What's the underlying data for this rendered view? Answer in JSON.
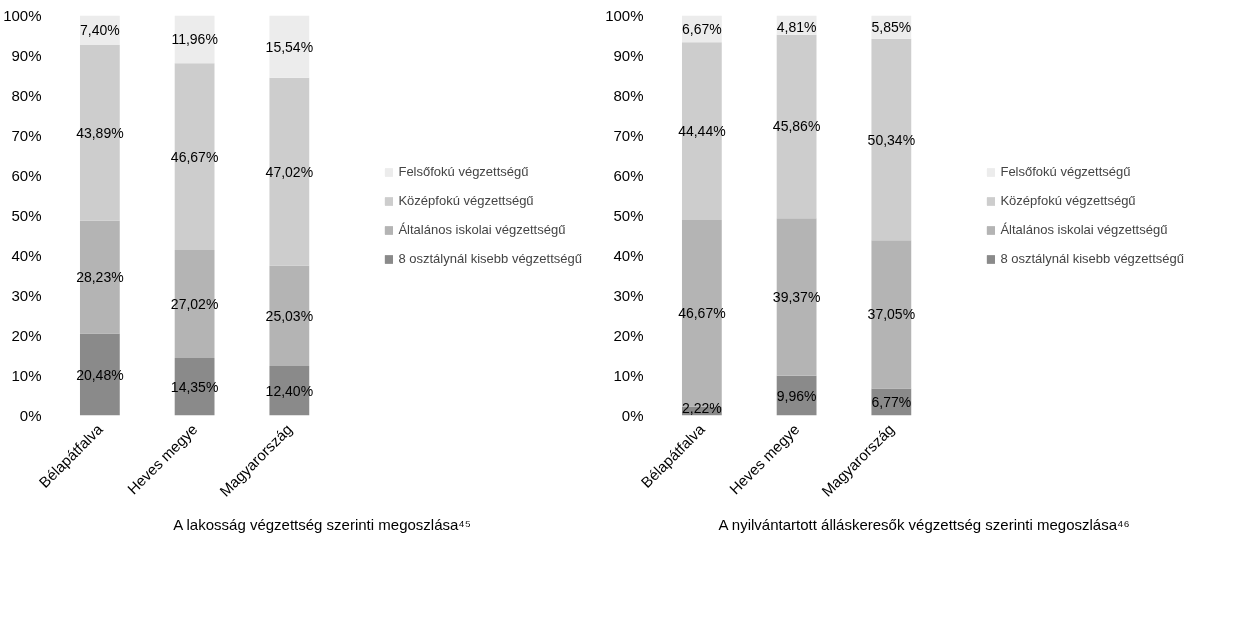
{
  "chart_data": [
    {
      "type": "bar",
      "stacked": true,
      "title": "A lakosság végzettség szerinti megoszlása⁴⁵",
      "categories": [
        "Bélapátfalva",
        "Heves megye",
        "Magyarország"
      ],
      "ylim": [
        0,
        100
      ],
      "yticks": [
        {
          "value": 0,
          "label": "0%"
        },
        {
          "value": 10,
          "label": "10%"
        },
        {
          "value": 20,
          "label": "20%"
        },
        {
          "value": 30,
          "label": "30%"
        },
        {
          "value": 40,
          "label": "40%"
        },
        {
          "value": 50,
          "label": "50%"
        },
        {
          "value": 60,
          "label": "60%"
        },
        {
          "value": 70,
          "label": "70%"
        },
        {
          "value": 80,
          "label": "80%"
        },
        {
          "value": 90,
          "label": "90%"
        },
        {
          "value": 100,
          "label": "100%"
        }
      ],
      "grid": false,
      "legend": "right",
      "series": [
        {
          "name": "8 osztálynál kisebb végzettségű",
          "color": "#8a8a8a",
          "values": [
            20.48,
            14.35,
            12.4
          ],
          "value_labels": [
            "20,48%",
            "14,35%",
            "12,40%"
          ]
        },
        {
          "name": "Általános iskolai végzettségű",
          "color": "#b4b4b4",
          "values": [
            28.23,
            27.02,
            25.03
          ],
          "value_labels": [
            "28,23%",
            "27,02%",
            "25,03%"
          ]
        },
        {
          "name": "Középfokú végzettségű",
          "color": "#cdcdcd",
          "values": [
            43.89,
            46.67,
            47.02
          ],
          "value_labels": [
            "43,89%",
            "46,67%",
            "47,02%"
          ]
        },
        {
          "name": "Felsőfokú végzettségű",
          "color": "#ececec",
          "values": [
            7.4,
            11.96,
            15.54
          ],
          "value_labels": [
            "7,40%",
            "11,96%",
            "15,54%"
          ]
        }
      ]
    },
    {
      "type": "bar",
      "stacked": true,
      "title": "A nyilvántartott álláskeresők végzettség szerinti megoszlása⁴⁶",
      "categories": [
        "Bélapátfalva",
        "Heves megye",
        "Magyarország"
      ],
      "ylim": [
        0,
        100
      ],
      "yticks": [
        {
          "value": 0,
          "label": "0%"
        },
        {
          "value": 10,
          "label": "10%"
        },
        {
          "value": 20,
          "label": "20%"
        },
        {
          "value": 30,
          "label": "30%"
        },
        {
          "value": 40,
          "label": "40%"
        },
        {
          "value": 50,
          "label": "50%"
        },
        {
          "value": 60,
          "label": "60%"
        },
        {
          "value": 70,
          "label": "70%"
        },
        {
          "value": 80,
          "label": "80%"
        },
        {
          "value": 90,
          "label": "90%"
        },
        {
          "value": 100,
          "label": "100%"
        }
      ],
      "grid": false,
      "legend": "right",
      "series": [
        {
          "name": "8 osztálynál kisebb végzettségű",
          "color": "#8a8a8a",
          "values": [
            2.22,
            9.96,
            6.77
          ],
          "value_labels": [
            "2,22%",
            "9,96%",
            "6,77%"
          ]
        },
        {
          "name": "Általános iskolai végzettségű",
          "color": "#b4b4b4",
          "values": [
            46.67,
            39.37,
            37.05
          ],
          "value_labels": [
            "46,67%",
            "39,37%",
            "37,05%"
          ]
        },
        {
          "name": "Középfokú végzettségű",
          "color": "#cdcdcd",
          "values": [
            44.44,
            45.86,
            50.34
          ],
          "value_labels": [
            "44,44%",
            "45,86%",
            "50,34%"
          ]
        },
        {
          "name": "Felsőfokú végzettségű",
          "color": "#ececec",
          "values": [
            6.67,
            4.81,
            5.85
          ],
          "value_labels": [
            "6,67%",
            "4,81%",
            "5,85%"
          ]
        }
      ]
    }
  ]
}
